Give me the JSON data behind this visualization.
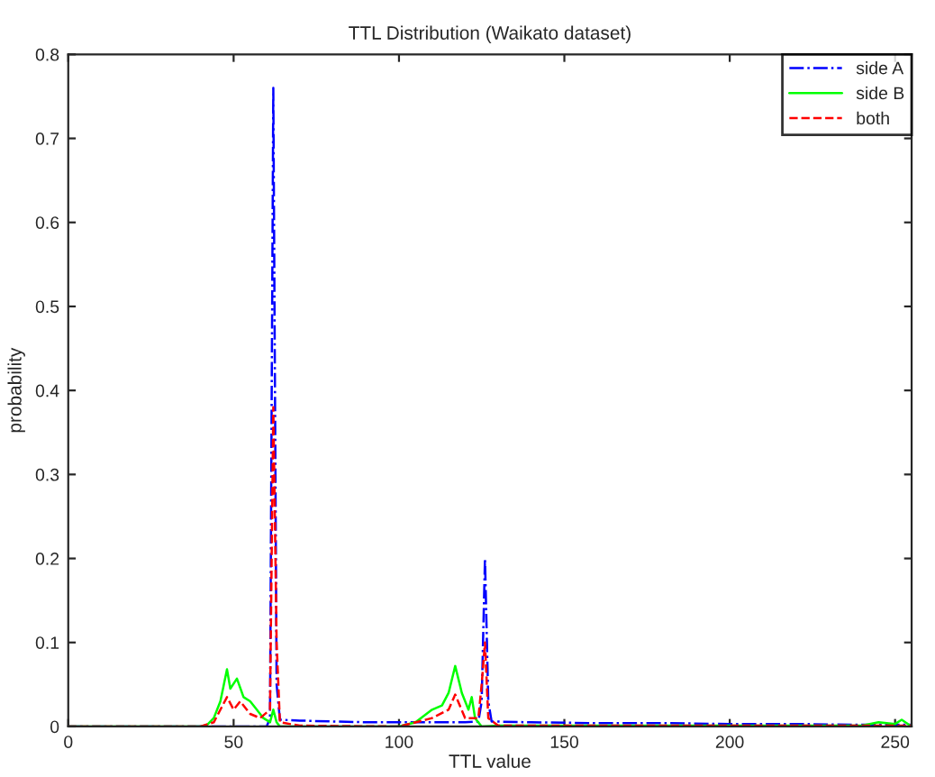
{
  "chart_data": {
    "type": "line",
    "title": "TTL Distribution (Waikato dataset)",
    "xlabel": "TTL value",
    "ylabel": "probability",
    "xlim": [
      0,
      255
    ],
    "ylim": [
      0,
      0.8
    ],
    "xticks": [
      0,
      50,
      100,
      150,
      200,
      250
    ],
    "yticks": [
      0,
      0.1,
      0.2,
      0.3,
      0.4,
      0.5,
      0.6,
      0.7,
      0.8
    ],
    "legend": "top right",
    "grid": false,
    "series": [
      {
        "name": "side A",
        "color": "#0000ff",
        "line_style": "dashdot",
        "x": [
          0,
          40,
          60,
          61,
          62,
          63,
          64,
          70,
          80,
          90,
          100,
          110,
          120,
          124,
          125,
          126,
          127,
          128,
          140,
          160,
          180,
          200,
          220,
          240,
          255
        ],
        "values": [
          0,
          0,
          0,
          0.01,
          0.76,
          0.05,
          0.008,
          0.007,
          0.006,
          0.005,
          0.005,
          0.005,
          0.005,
          0.006,
          0.03,
          0.2,
          0.03,
          0.006,
          0.005,
          0.004,
          0.004,
          0.003,
          0.003,
          0.002,
          0.002
        ]
      },
      {
        "name": "side B",
        "color": "#00ff00",
        "line_style": "solid",
        "x": [
          0,
          40,
          42,
          44,
          46,
          48,
          49,
          51,
          53,
          55,
          57,
          59,
          61,
          62,
          63,
          64,
          70,
          100,
          105,
          110,
          113,
          115,
          117,
          119,
          121,
          122,
          123,
          125,
          130,
          240,
          245,
          250,
          252,
          255
        ],
        "values": [
          0,
          0,
          0.002,
          0.01,
          0.03,
          0.068,
          0.045,
          0.057,
          0.035,
          0.03,
          0.02,
          0.01,
          0.005,
          0.02,
          0.005,
          0,
          0,
          0,
          0.005,
          0.02,
          0.025,
          0.04,
          0.072,
          0.04,
          0.02,
          0.035,
          0.01,
          0,
          0.001,
          0.001,
          0.005,
          0.003,
          0.008,
          0
        ]
      },
      {
        "name": "both",
        "color": "#ff0000",
        "line_style": "dashed",
        "x": [
          0,
          40,
          44,
          48,
          50,
          52,
          55,
          58,
          61,
          62,
          63,
          64,
          70,
          100,
          110,
          115,
          117,
          120,
          124,
          125,
          126,
          127,
          130,
          255
        ],
        "values": [
          0,
          0,
          0.005,
          0.035,
          0.02,
          0.03,
          0.015,
          0.01,
          0.02,
          0.38,
          0.1,
          0.005,
          0.001,
          0,
          0.01,
          0.02,
          0.038,
          0.01,
          0.01,
          0.05,
          0.1,
          0.01,
          0.001,
          0.001
        ]
      }
    ]
  }
}
